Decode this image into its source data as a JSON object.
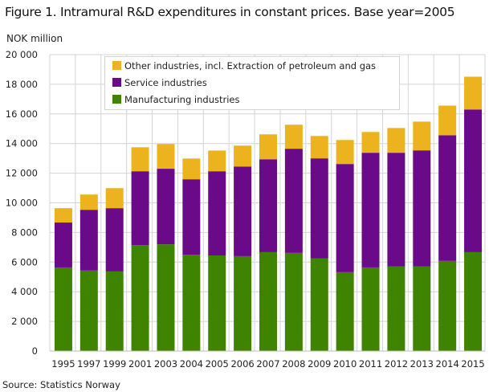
{
  "chart_data": {
    "type": "bar",
    "stacked": true,
    "title": "Figure 1. Intramural R&D expenditures in constant prices. Base year=2005",
    "ylabel": "NOK million",
    "xlabel": "",
    "source": "Source: Statistics Norway",
    "ylim": [
      0,
      20000
    ],
    "yticks": [
      0,
      2000,
      4000,
      6000,
      8000,
      10000,
      12000,
      14000,
      16000,
      18000,
      20000
    ],
    "ytick_labels": [
      "0",
      "2 000",
      "4 000",
      "6 000",
      "8 000",
      "10 000",
      "12 000",
      "14 000",
      "16 000",
      "18 000",
      "20 000"
    ],
    "grid": true,
    "legend_position": "top-center",
    "categories": [
      "1995",
      "1997",
      "1999",
      "2001",
      "2003",
      "2004",
      "2005",
      "2006",
      "2007",
      "2008",
      "2009",
      "2010",
      "2011",
      "2012",
      "2013",
      "2014",
      "2015"
    ],
    "series": [
      {
        "name": "Manufacturing industries",
        "color": "#3f8400",
        "values": [
          5640,
          5430,
          5370,
          7150,
          7200,
          6500,
          6450,
          6400,
          6670,
          6620,
          6240,
          5320,
          5640,
          5700,
          5700,
          6080,
          6670
        ]
      },
      {
        "name": "Service industries",
        "color": "#6a0a89",
        "values": [
          3030,
          4100,
          4270,
          4980,
          5100,
          5090,
          5680,
          6050,
          6270,
          7030,
          6760,
          7300,
          7740,
          7680,
          7840,
          8480,
          9630
        ]
      },
      {
        "name": "Other industries, incl. Extraction of petroleum and gas",
        "color": "#ecb31f",
        "values": [
          970,
          1030,
          1350,
          1620,
          1670,
          1400,
          1400,
          1410,
          1680,
          1620,
          1510,
          1620,
          1400,
          1670,
          1940,
          2000,
          2210
        ]
      }
    ],
    "legend_order": [
      2,
      1,
      0
    ]
  }
}
